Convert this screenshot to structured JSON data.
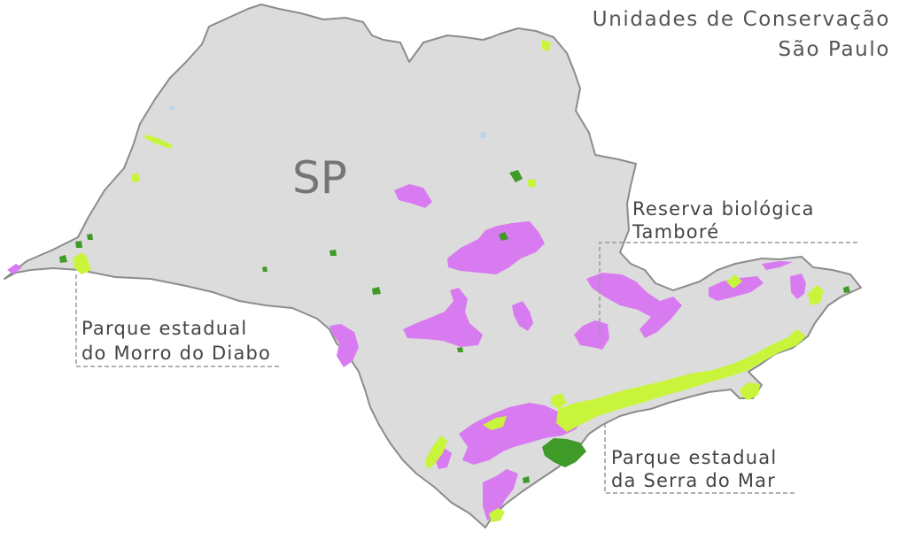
{
  "title": {
    "line1": "Unidades de Conservação",
    "line2": "São Paulo"
  },
  "state_label": "SP",
  "callouts": {
    "tambore": {
      "line1": "Reserva biológica",
      "line2": "Tamboré"
    },
    "morro_do_diabo": {
      "line1": "Parque estadual",
      "line2": "do Morro do Diabo"
    },
    "serra_do_mar": {
      "line1": "Parque estadual",
      "line2": "da Serra do Mar"
    }
  },
  "colors": {
    "background": "#ffffff",
    "state_fill": "#dcdcdc",
    "state_border": "#8c8c8c",
    "magenta_areas": "#d97bf0",
    "light_green_areas": "#c8f53c",
    "dark_green_areas": "#3f9a28",
    "water_blue": "#b8d4ee",
    "text": "#555555",
    "leader_lines": "#999999"
  }
}
